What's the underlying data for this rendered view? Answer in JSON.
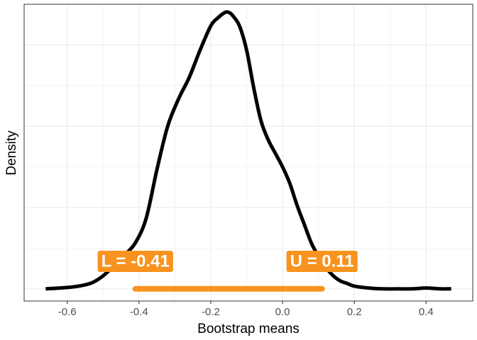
{
  "chart_data": {
    "type": "area",
    "xlabel": "Bootstrap means",
    "ylabel": "Density",
    "xlim": [
      -0.72,
      0.53
    ],
    "ylim": [
      -0.045,
      1.05
    ],
    "x_ticks": [
      -0.6,
      -0.4,
      -0.2,
      0.0,
      0.2,
      0.4
    ],
    "x_tick_labels": [
      "-0.6",
      "-0.4",
      "-0.2",
      "0.0",
      "0.2",
      "0.4"
    ],
    "y_tick_labels_shown": false,
    "grid": true,
    "density_curve": {
      "x": [
        -0.66,
        -0.6,
        -0.56,
        -0.53,
        -0.5,
        -0.47,
        -0.44,
        -0.41,
        -0.38,
        -0.35,
        -0.32,
        -0.29,
        -0.26,
        -0.23,
        -0.2,
        -0.18,
        -0.16,
        -0.15,
        -0.14,
        -0.12,
        -0.1,
        -0.08,
        -0.06,
        -0.04,
        -0.02,
        0.0,
        0.02,
        0.04,
        0.06,
        0.08,
        0.1,
        0.12,
        0.14,
        0.16,
        0.18,
        0.2,
        0.24,
        0.28,
        0.32,
        0.36,
        0.4,
        0.44,
        0.47
      ],
      "y": [
        0.0,
        0.005,
        0.012,
        0.023,
        0.048,
        0.085,
        0.125,
        0.17,
        0.26,
        0.44,
        0.6,
        0.7,
        0.78,
        0.88,
        0.97,
        1.0,
        1.02,
        1.02,
        1.01,
        0.97,
        0.88,
        0.74,
        0.62,
        0.55,
        0.5,
        0.45,
        0.39,
        0.31,
        0.24,
        0.17,
        0.12,
        0.08,
        0.05,
        0.03,
        0.02,
        0.01,
        0.003,
        0.0,
        0.0,
        0.0,
        0.003,
        0.0,
        0.0
      ],
      "color": "#000000"
    },
    "interval": {
      "lower": -0.41,
      "upper": 0.11,
      "color": "#F7931E",
      "lower_label": "L =  -0.41",
      "upper_label": "U =  0.11"
    },
    "panel_background": "#ffffff",
    "grid_color": "#ebebeb",
    "border_color": "#333333"
  }
}
